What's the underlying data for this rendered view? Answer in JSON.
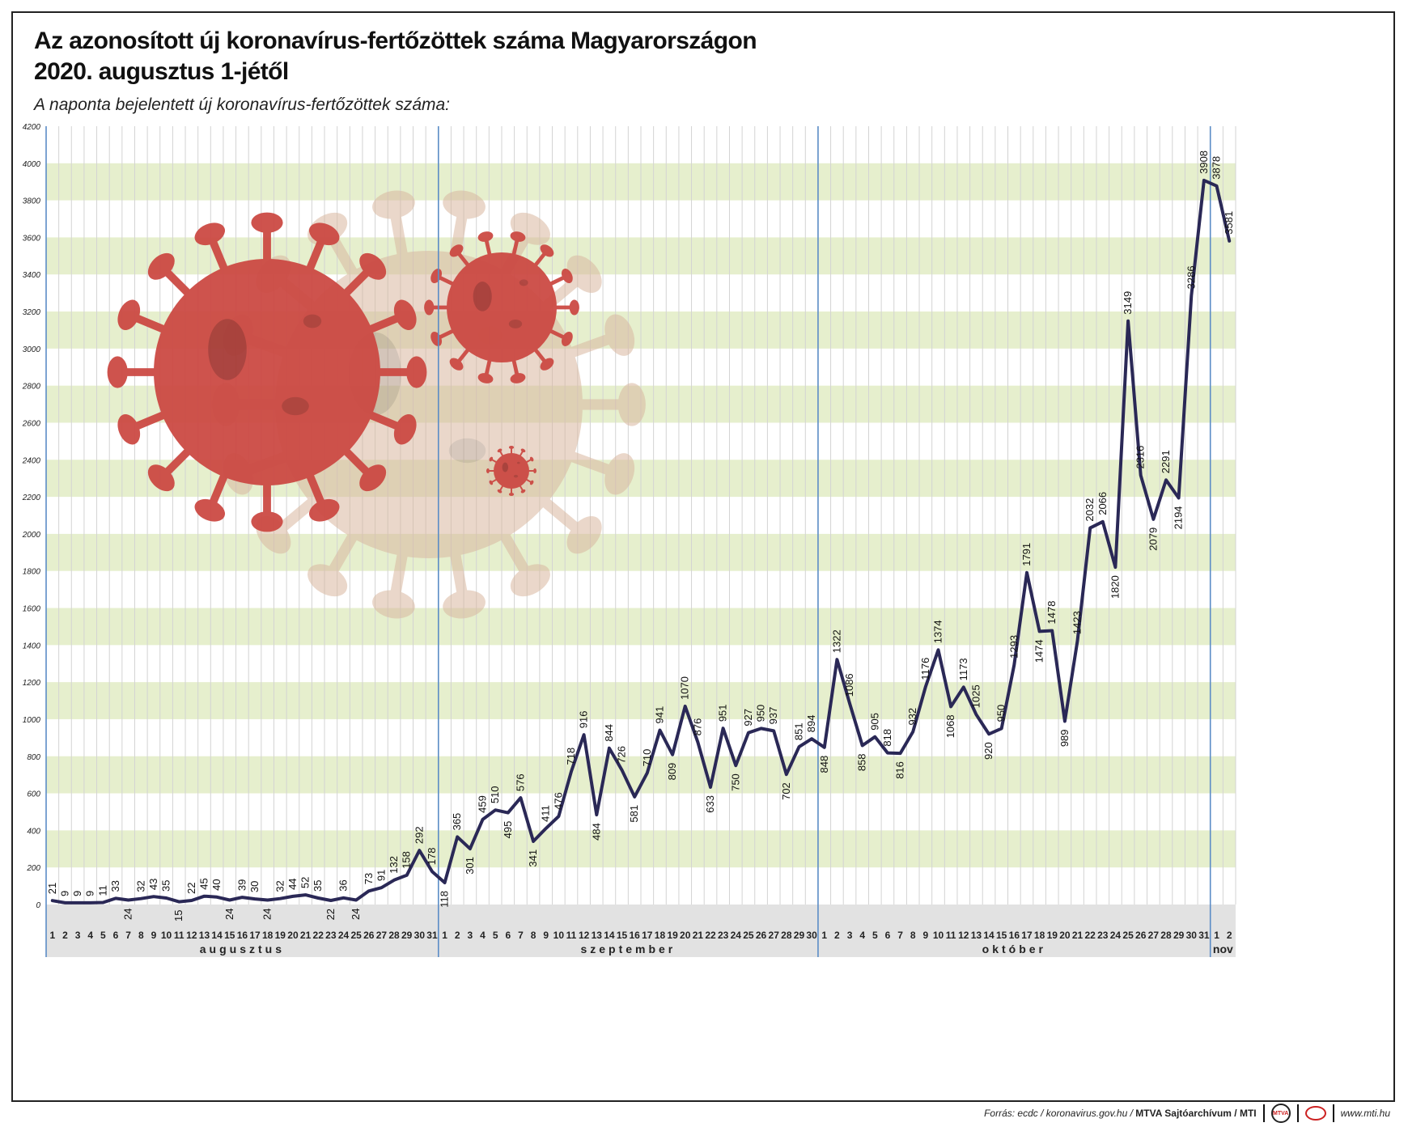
{
  "title_line1": "Az azonosított új koronavírus-fertőzöttek száma Magyarországon",
  "title_line2": "2020. augusztus 1-jétől",
  "subtitle": "A naponta bejelentett új koronavírus-fertőzöttek száma:",
  "footer": {
    "source_prefix": "Forrás: ecdc / koronavirus.gov.hu / ",
    "source_agency": "MTVA Sajtóarchívum / MTI",
    "logo_text": "MTVA",
    "website": "www.mti.hu"
  },
  "colors": {
    "line": "#2a2856",
    "band": "#e6efcd",
    "grid": "#d3d3d3",
    "month_divider": "#5b8cc6",
    "axis_band": "#e2e2e2",
    "virus": "#cc4a44"
  },
  "chart_data": {
    "type": "line",
    "ylim": [
      0,
      4200
    ],
    "yticks": [
      0,
      200,
      400,
      600,
      800,
      1000,
      1200,
      1400,
      1600,
      1800,
      2000,
      2200,
      2400,
      2600,
      2800,
      3000,
      3200,
      3400,
      3600,
      3800,
      4000,
      4200
    ],
    "months": [
      {
        "label": "augusztus",
        "days": 31
      },
      {
        "label": "szeptember",
        "days": 30
      },
      {
        "label": "október",
        "days": 31
      },
      {
        "label": "nov",
        "days": 2
      }
    ],
    "series": [
      {
        "name": "új fertőzöttek",
        "values": [
          21,
          9,
          9,
          9,
          11,
          33,
          24,
          32,
          43,
          35,
          15,
          22,
          45,
          40,
          24,
          39,
          30,
          24,
          32,
          44,
          52,
          35,
          22,
          36,
          24,
          73,
          91,
          132,
          158,
          292,
          178,
          118,
          365,
          301,
          459,
          510,
          495,
          576,
          341,
          411,
          476,
          718,
          916,
          484,
          844,
          726,
          581,
          710,
          941,
          809,
          1070,
          876,
          633,
          951,
          750,
          927,
          950,
          937,
          702,
          851,
          894,
          848,
          1322,
          1086,
          858,
          905,
          818,
          816,
          932,
          1176,
          1374,
          1068,
          1173,
          1025,
          920,
          950,
          1293,
          1791,
          1474,
          1478,
          989,
          1423,
          2032,
          2066,
          1820,
          3149,
          2316,
          2079,
          2291,
          2194,
          3286,
          3908,
          3878,
          3581
        ]
      }
    ]
  }
}
